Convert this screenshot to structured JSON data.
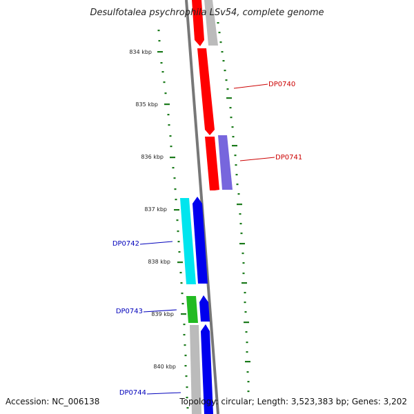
{
  "title": "Desulfotalea psychrophila LSv54, complete genome",
  "footer": {
    "accession": "Accession: NC_006138",
    "topology": "Topology: circular; Length: 3,523,383 bp; Genes: 3,202"
  },
  "ticks": [
    "834 kbp",
    "835 kbp",
    "836 kbp",
    "837 kbp",
    "838 kbp",
    "839 kbp",
    "840 kbp"
  ],
  "gene_labels": [
    {
      "text": "DP0740",
      "color": "#cc0000"
    },
    {
      "text": "DP0741",
      "color": "#cc0000"
    },
    {
      "text": "DP0742",
      "color": "#0000bb"
    },
    {
      "text": "DP0743",
      "color": "#0000bb"
    },
    {
      "text": "DP0744",
      "color": "#0000bb"
    }
  ],
  "colors": {
    "forward_cds": "#ff0000",
    "reverse_cds": "#0000ee",
    "cyan_feature": "#00e5ee",
    "green_feature": "#22bb22",
    "purple_feature": "#7766dd",
    "gray_feature": "#bbbbbb",
    "gc_dots": "#1a7a1a",
    "backbone": "#777777"
  }
}
